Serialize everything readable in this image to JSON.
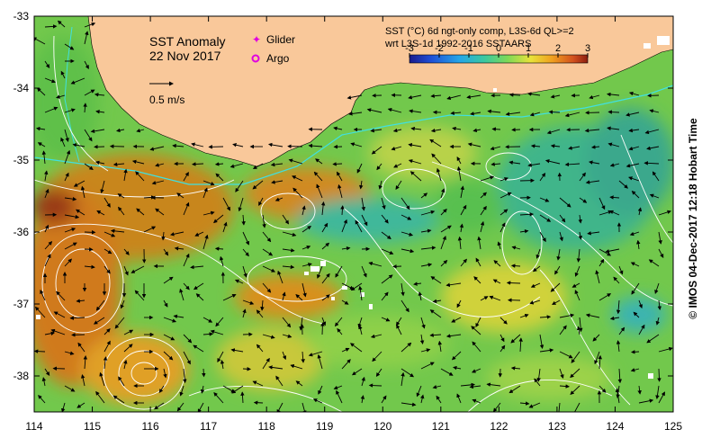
{
  "title": "SST Anomaly",
  "date": "22 Nov 2017",
  "scale_arrow_label": "0.5 m/s",
  "legend": {
    "glider": {
      "label": "Glider",
      "color": "#e000e0"
    },
    "argo": {
      "label": "Argo",
      "color": "#e000e0"
    }
  },
  "product_line1": "SST (°C) 6d ngt-only comp, L3S-6d QL>=2",
  "product_line2": "wrt L3S-1d 1992-2016 SSTAARS",
  "colorbar": {
    "ticks": [
      "-3",
      "-2",
      "-1",
      "0",
      "1",
      "2",
      "3"
    ],
    "colors": [
      "#1a1a8c",
      "#1f4fd6",
      "#25a6e8",
      "#3ac8a0",
      "#7ed957",
      "#e8e23a",
      "#f0a020",
      "#d2501e",
      "#8c1e10"
    ]
  },
  "credit": "© IMOS 04-Dec-2017 12:18 Hobart Time",
  "axes": {
    "x_ticks": [
      "114",
      "115",
      "116",
      "117",
      "118",
      "119",
      "120",
      "121",
      "122",
      "123",
      "124",
      "125"
    ],
    "y_ticks": [
      "-33",
      "-34",
      "-35",
      "-36",
      "-37",
      "-38"
    ]
  },
  "colors": {
    "land": "#f9c89a",
    "ocean_base": "#6cc84a",
    "contour": "#ffffff",
    "coastline_current": "#40e0e0"
  }
}
